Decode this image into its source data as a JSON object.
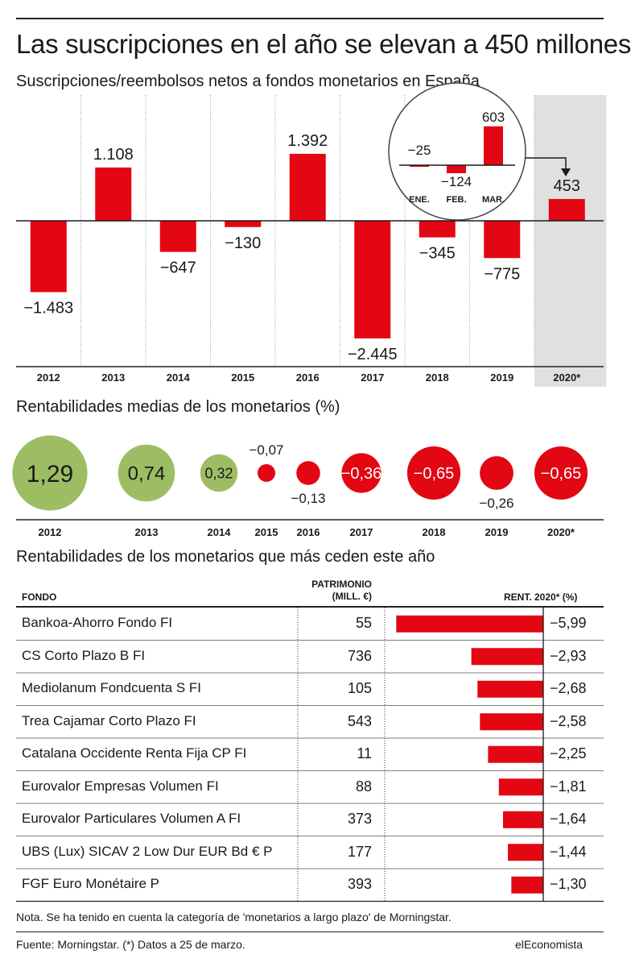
{
  "title": "Las suscripciones en el año se elevan a 450 millones",
  "colors": {
    "red": "#e30613",
    "green": "#9dbd64",
    "shade": "#e0e0e0"
  },
  "section1": {
    "subtitle": "Suscripciones/reembolsos netos a fondos monetarios en España",
    "value_labels": [
      "−1.483",
      "1.108",
      "−647",
      "−130",
      "1.392",
      "−2.445",
      "−345",
      "−775",
      "453"
    ],
    "inset": {
      "months": [
        "ENE.",
        "FEB.",
        "MAR."
      ],
      "value_labels": [
        "−25",
        "−124",
        "603"
      ]
    }
  },
  "section2": {
    "subtitle": "Rentabilidades medias de los monetarios (%)",
    "value_labels": [
      "1,29",
      "0,74",
      "0,32",
      "−0,07",
      "−0,13",
      "−0,36",
      "−0,65",
      "−0,26",
      "−0,65"
    ]
  },
  "section3": {
    "subtitle": "Rentabilidades de los monetarios que más ceden este año",
    "col_fondo": "FONDO",
    "col_patrimonio_1": "PATRIMONIO",
    "col_patrimonio_2": "(MILL. €)",
    "col_rent": "RENT. 2020* (%)",
    "rows": [
      {
        "name": "Bankoa-Ahorro Fondo FI",
        "patrimonio": "55",
        "rent_label": "−5,99"
      },
      {
        "name": "CS Corto Plazo B FI",
        "patrimonio": "736",
        "rent_label": "−2,93"
      },
      {
        "name": "Mediolanum Fondcuenta S FI",
        "patrimonio": "105",
        "rent_label": "−2,68"
      },
      {
        "name": "Trea Cajamar Corto Plazo FI",
        "patrimonio": "543",
        "rent_label": "−2,58"
      },
      {
        "name": "Catalana Occidente Renta Fija CP FI",
        "patrimonio": "11",
        "rent_label": "−2,25"
      },
      {
        "name": "Eurovalor Empresas Volumen FI",
        "patrimonio": "88",
        "rent_label": "−1,81"
      },
      {
        "name": "Eurovalor Particulares Volumen A FI",
        "patrimonio": "373",
        "rent_label": "−1,64"
      },
      {
        "name": "UBS (Lux) SICAV 2 Low Dur EUR Bd € P",
        "patrimonio": "177",
        "rent_label": "−1,44"
      },
      {
        "name": "FGF Euro Monétaire P",
        "patrimonio": "393",
        "rent_label": "−1,30"
      }
    ]
  },
  "note": "Nota. Se ha tenido en cuenta la categoría de 'monetarios a largo plazo' de Morningstar.",
  "source": "Fuente: Morningstar. (*) Datos a 25 de marzo.",
  "brand": "elEconomista",
  "chart_data": [
    {
      "type": "bar",
      "title": "Suscripciones/reembolsos netos a fondos monetarios en España",
      "categories": [
        "2012",
        "2013",
        "2014",
        "2015",
        "2016",
        "2017",
        "2018",
        "2019",
        "2020*"
      ],
      "values": [
        -1483,
        1108,
        -647,
        -130,
        1392,
        -2445,
        -345,
        -775,
        453
      ],
      "ylim": [
        -2445,
        1392
      ],
      "grid": true,
      "highlight": "2020*"
    },
    {
      "type": "bar",
      "title": "",
      "categories": [
        "ENE.",
        "FEB.",
        "MAR."
      ],
      "values": [
        -25,
        -124,
        603
      ]
    },
    {
      "type": "scatter",
      "title": "Rentabilidades medias de los monetarios (%)",
      "categories": [
        "2012",
        "2013",
        "2014",
        "2015",
        "2016",
        "2017",
        "2018",
        "2019",
        "2020*"
      ],
      "values": [
        1.29,
        0.74,
        0.32,
        -0.07,
        -0.13,
        -0.36,
        -0.65,
        -0.26,
        -0.65
      ]
    },
    {
      "type": "bar",
      "title": "Rentabilidades de los monetarios que más ceden este año",
      "categories": [
        "Bankoa-Ahorro Fondo FI",
        "CS Corto Plazo B FI",
        "Mediolanum Fondcuenta S FI",
        "Trea Cajamar Corto Plazo FI",
        "Catalana Occidente Renta Fija CP FI",
        "Eurovalor Empresas Volumen FI",
        "Eurovalor Particulares Volumen A FI",
        "UBS (Lux) SICAV 2 Low Dur EUR Bd € P",
        "FGF Euro Monétaire P"
      ],
      "series": [
        {
          "name": "PATRIMONIO (MILL. €)",
          "values": [
            55,
            736,
            105,
            543,
            11,
            88,
            373,
            177,
            393
          ]
        },
        {
          "name": "RENT. 2020* (%)",
          "values": [
            -5.99,
            -2.93,
            -2.68,
            -2.58,
            -2.25,
            -1.81,
            -1.64,
            -1.44,
            -1.3
          ]
        }
      ]
    }
  ]
}
